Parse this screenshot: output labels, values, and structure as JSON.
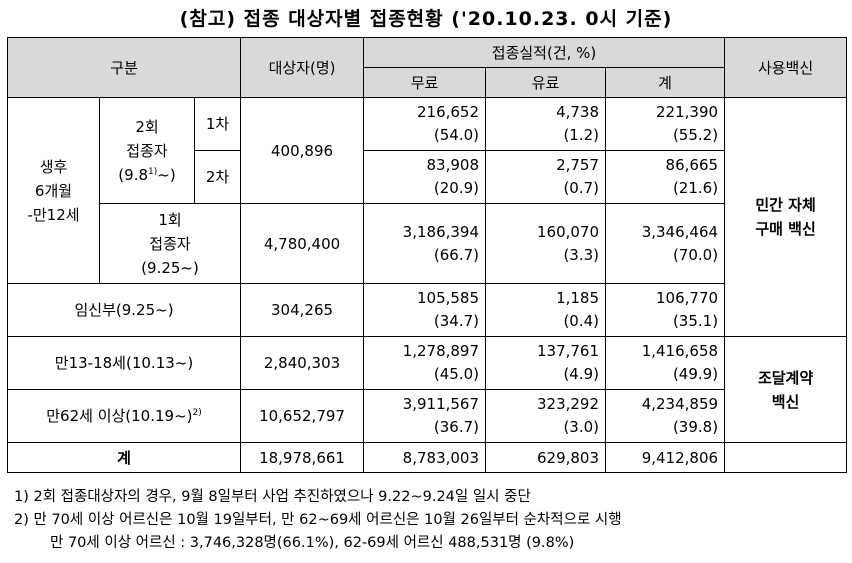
{
  "title": "(참고) 접종 대상자별 접종현황 ('20.10.23. 0시 기준)",
  "header": {
    "category": "구분",
    "target": "대상자(명)",
    "results": "접종실적(건, %)",
    "free": "무료",
    "paid": "유료",
    "total": "계",
    "vaccine": "사용백신"
  },
  "rows": {
    "infant_group": "생후 6개월 -만12세",
    "two_dose": {
      "label_a": "2회",
      "label_b": "접종자",
      "label_c_pre": "(9.8",
      "label_c_sup": "1)",
      "label_c_post": "~)"
    },
    "first": {
      "label": "1차",
      "target": "400,896",
      "free": "216,652",
      "free_pct": "(54.0)",
      "paid": "4,738",
      "paid_pct": "(1.2)",
      "total": "221,390",
      "total_pct": "(55.2)"
    },
    "second": {
      "label": "2차",
      "free": "83,908",
      "free_pct": "(20.9)",
      "paid": "2,757",
      "paid_pct": "(0.7)",
      "total": "86,665",
      "total_pct": "(21.6)"
    },
    "one_dose": {
      "label_a": "1회",
      "label_b": "접종자",
      "label_c": "(9.25~)",
      "target": "4,780,400",
      "free": "3,186,394",
      "free_pct": "(66.7)",
      "paid": "160,070",
      "paid_pct": "(3.3)",
      "total": "3,346,464",
      "total_pct": "(70.0)"
    },
    "pregnant": {
      "label": "임신부(9.25~)",
      "target": "304,265",
      "free": "105,585",
      "free_pct": "(34.7)",
      "paid": "1,185",
      "paid_pct": "(0.4)",
      "total": "106,770",
      "total_pct": "(35.1)"
    },
    "teen": {
      "label": "만13-18세(10.13~)",
      "target": "2,840,303",
      "free": "1,278,897",
      "free_pct": "(45.0)",
      "paid": "137,761",
      "paid_pct": "(4.9)",
      "total": "1,416,658",
      "total_pct": "(49.9)"
    },
    "elder": {
      "label": "만62세 이상(10.19~)",
      "label_sup": "2)",
      "target": "10,652,797",
      "free": "3,911,567",
      "free_pct": "(36.7)",
      "paid": "323,292",
      "paid_pct": "(3.0)",
      "total": "4,234,859",
      "total_pct": "(39.8)"
    },
    "sum": {
      "label": "계",
      "target": "18,978,661",
      "free": "8,783,003",
      "paid": "629,803",
      "total": "9,412,806"
    }
  },
  "vaccine_private": "민간 자체 구매 백신",
  "vaccine_contract": "조달계약 백신",
  "notes": [
    "1) 2회 접종대상자의 경우, 9월 8일부터 사업 추진하였으나 9.22~9.24일 일시 중단",
    "2) 만 70세 이상 어르신은 10월 19일부터, 만 62~69세 어르신은 10월 26일부터 순차적으로 시행",
    "만 70세 이상 어르신 : 3,746,328명(66.1%), 62-69세 어르신 488,531명 (9.8%)"
  ]
}
